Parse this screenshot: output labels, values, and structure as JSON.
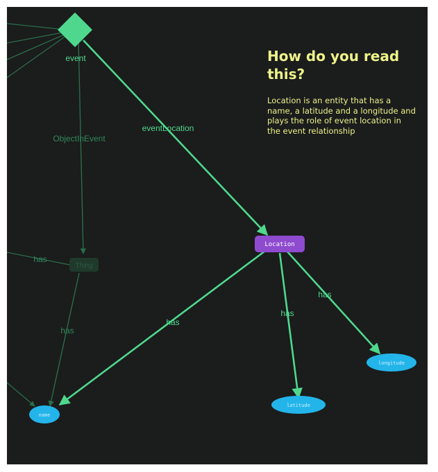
{
  "explanation": {
    "title": "How do you read this?",
    "body": "Location is an entity that has a name, a latitude and a longitude and plays the role of event location in the event relationship"
  },
  "nodes": {
    "event": "event",
    "thing": "Thing",
    "location": "Location",
    "name": "name",
    "latitude": "latitude",
    "longitude": "longitude"
  },
  "edges": {
    "event_location": "eventLocation",
    "object_in_event": "ObjectInEvent",
    "thing_has": "has",
    "thing_has_name": "has",
    "location_has_name": "has",
    "location_has_latitude": "has",
    "location_has_longitude": "has"
  },
  "colors": {
    "background": "#1b1c1c",
    "edge": "#4fd88d",
    "edge_dim": "#2e7d55",
    "event_node": "#4fd88d",
    "entity_node": "#8e4bcf",
    "attribute_node": "#23b5ea",
    "explanation_text": "#eef38a"
  }
}
